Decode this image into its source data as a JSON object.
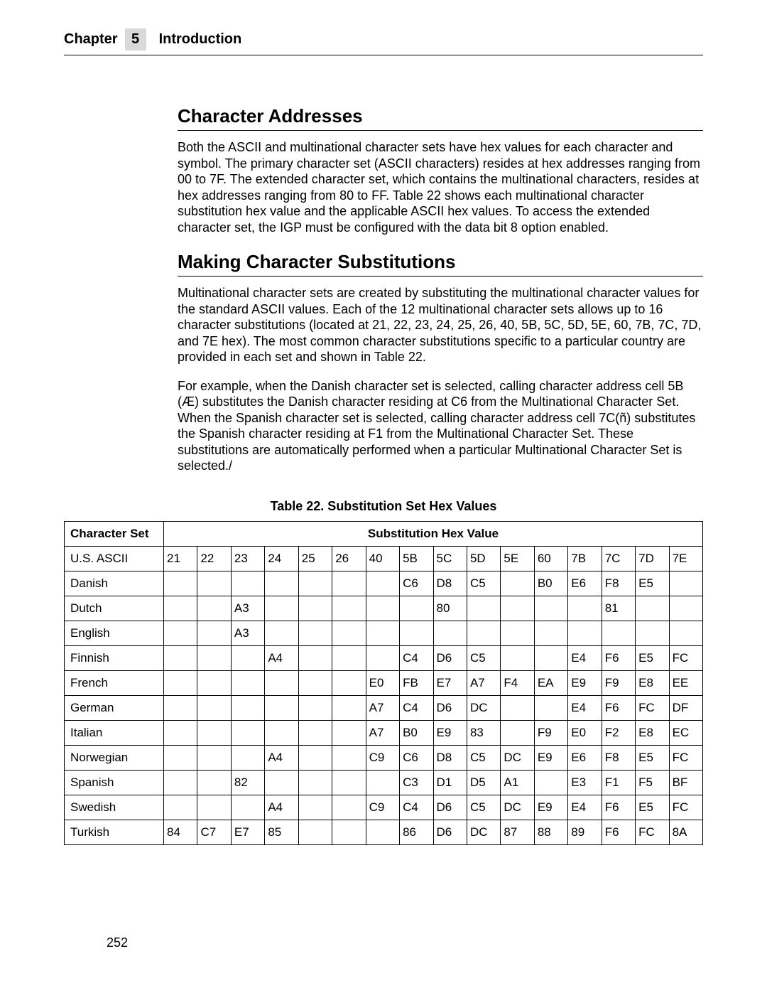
{
  "header": {
    "chapter_label": "Chapter",
    "chapter_number": "5",
    "chapter_title": "Introduction"
  },
  "sections": {
    "s1": {
      "title": "Character Addresses",
      "p1": "Both the ASCII and multinational character sets have hex values for each character and symbol. The primary character set (ASCII characters) resides at hex addresses ranging from 00 to 7F. The extended character set, which contains the multinational characters, resides at hex addresses ranging from 80 to FF. Table 22 shows each multinational character substitution hex value and the applicable ASCII hex values. To access the extended character set, the IGP must be configured with the data bit 8 option enabled."
    },
    "s2": {
      "title": "Making Character Substitutions",
      "p1": "Multinational character sets are created by substituting the multinational character values for the standard ASCII values. Each of the 12 multinational character sets allows up to 16 character substitutions (located at 21, 22, 23, 24, 25, 26, 40, 5B, 5C, 5D, 5E, 60, 7B, 7C, 7D, and 7E hex). The most common character substitutions specific to a particular country are provided in each set and shown in Table 22.",
      "p2": "For example, when the Danish character set is selected, calling character address cell 5B (Æ) substitutes the Danish character residing at C6 from the Multinational Character Set. When the Spanish character set is selected, calling character address cell 7C(ñ) substitutes the Spanish character residing at F1 from the Multinational Character Set. These substitutions are automatically performed when a particular Multinational Character Set is selected./"
    }
  },
  "table": {
    "caption": "Table 22. Substitution Set Hex Values",
    "header_cs": "Character Set",
    "header_shv": "Substitution Hex Value",
    "value_cols": [
      "21",
      "22",
      "23",
      "24",
      "25",
      "26",
      "40",
      "5B",
      "5C",
      "5D",
      "5E",
      "60",
      "7B",
      "7C",
      "7D",
      "7E"
    ],
    "rows": [
      {
        "name": "U.S. ASCII",
        "v": [
          "21",
          "22",
          "23",
          "24",
          "25",
          "26",
          "40",
          "5B",
          "5C",
          "5D",
          "5E",
          "60",
          "7B",
          "7C",
          "7D",
          "7E"
        ]
      },
      {
        "name": "Danish",
        "v": [
          "",
          "",
          "",
          "",
          "",
          "",
          "",
          "C6",
          "D8",
          "C5",
          "",
          "B0",
          "E6",
          "F8",
          "E5",
          ""
        ]
      },
      {
        "name": "Dutch",
        "v": [
          "",
          "",
          "A3",
          "",
          "",
          "",
          "",
          "",
          "80",
          "",
          "",
          "",
          "",
          "81",
          "",
          ""
        ]
      },
      {
        "name": "English",
        "v": [
          "",
          "",
          "A3",
          "",
          "",
          "",
          "",
          "",
          "",
          "",
          "",
          "",
          "",
          "",
          "",
          ""
        ]
      },
      {
        "name": "Finnish",
        "v": [
          "",
          "",
          "",
          "A4",
          "",
          "",
          "",
          "C4",
          "D6",
          "C5",
          "",
          "",
          "E4",
          "F6",
          "E5",
          "FC"
        ]
      },
      {
        "name": "French",
        "v": [
          "",
          "",
          "",
          "",
          "",
          "",
          "E0",
          "FB",
          "E7",
          "A7",
          "F4",
          "EA",
          "E9",
          "F9",
          "E8",
          "EE"
        ]
      },
      {
        "name": "German",
        "v": [
          "",
          "",
          "",
          "",
          "",
          "",
          "A7",
          "C4",
          "D6",
          "DC",
          "",
          "",
          "E4",
          "F6",
          "FC",
          "DF"
        ]
      },
      {
        "name": "Italian",
        "v": [
          "",
          "",
          "",
          "",
          "",
          "",
          "A7",
          "B0",
          "E9",
          "83",
          "",
          "F9",
          "E0",
          "F2",
          "E8",
          "EC"
        ]
      },
      {
        "name": "Norwegian",
        "v": [
          "",
          "",
          "",
          "A4",
          "",
          "",
          "C9",
          "C6",
          "D8",
          "C5",
          "DC",
          "E9",
          "E6",
          "F8",
          "E5",
          "FC"
        ]
      },
      {
        "name": "Spanish",
        "v": [
          "",
          "",
          "82",
          "",
          "",
          "",
          "",
          "C3",
          "D1",
          "D5",
          "A1",
          "",
          "E3",
          "F1",
          "F5",
          "BF"
        ]
      },
      {
        "name": "Swedish",
        "v": [
          "",
          "",
          "",
          "A4",
          "",
          "",
          "C9",
          "C4",
          "D6",
          "C5",
          "DC",
          "E9",
          "E4",
          "F6",
          "E5",
          "FC"
        ]
      },
      {
        "name": "Turkish",
        "v": [
          "84",
          "C7",
          "E7",
          "85",
          "",
          "",
          "",
          "86",
          "D6",
          "DC",
          "87",
          "88",
          "89",
          "F6",
          "FC",
          "8A"
        ]
      }
    ]
  },
  "page_number": "252",
  "style": {
    "bg": "#ffffff",
    "text": "#000000",
    "gray_box": "#d9d9d9",
    "border": "#000000",
    "body_fontsize": 18,
    "h2_fontsize": 26,
    "table_fontsize": 17
  }
}
